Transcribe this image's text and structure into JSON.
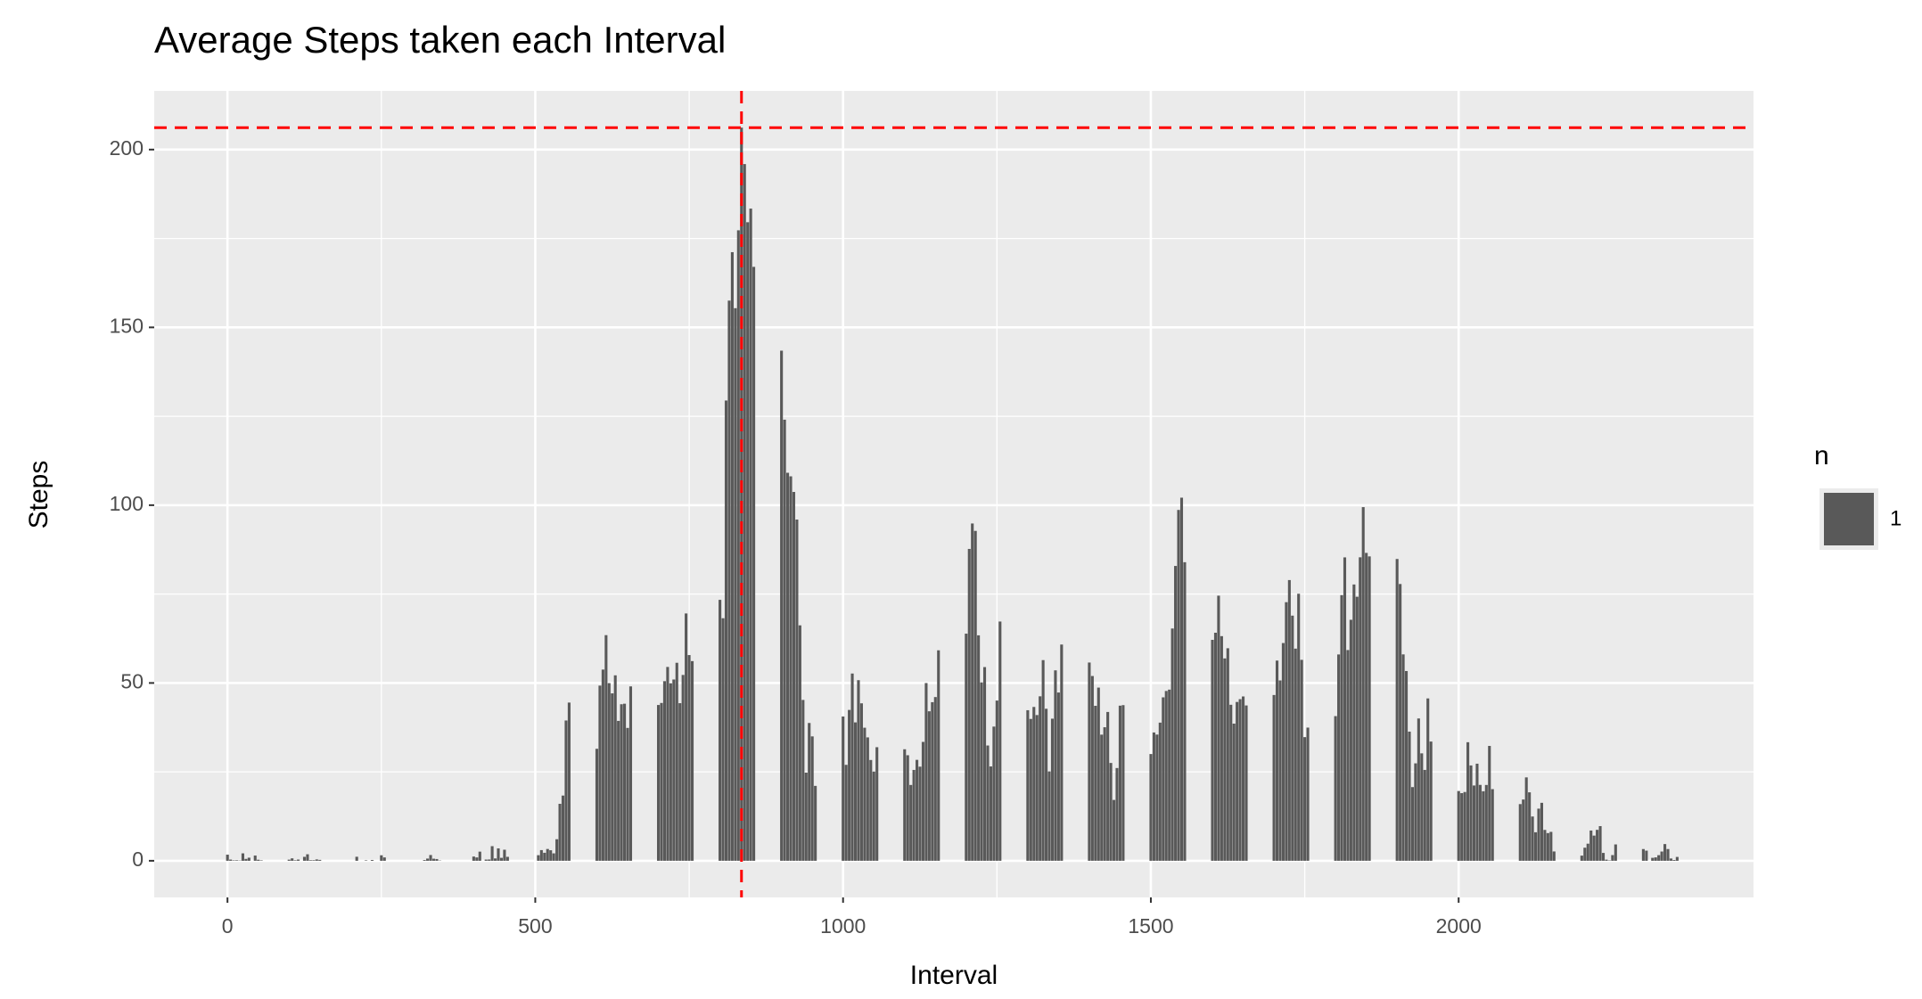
{
  "chart_data": {
    "type": "bar",
    "title": "Average Steps taken each Interval",
    "x_label": "Interval",
    "y_label": "Steps",
    "legend_title": "n",
    "x": [
      0,
      5,
      10,
      15,
      20,
      25,
      30,
      35,
      40,
      45,
      50,
      55,
      100,
      105,
      110,
      115,
      120,
      125,
      130,
      135,
      140,
      145,
      150,
      155,
      200,
      205,
      210,
      215,
      220,
      225,
      230,
      235,
      240,
      245,
      250,
      255,
      300,
      305,
      310,
      315,
      320,
      325,
      330,
      335,
      340,
      345,
      350,
      355,
      400,
      405,
      410,
      415,
      420,
      425,
      430,
      435,
      440,
      445,
      450,
      455,
      500,
      505,
      510,
      515,
      520,
      525,
      530,
      535,
      540,
      545,
      550,
      555,
      600,
      605,
      610,
      615,
      620,
      625,
      630,
      635,
      640,
      645,
      650,
      655,
      700,
      705,
      710,
      715,
      720,
      725,
      730,
      735,
      740,
      745,
      750,
      755,
      800,
      805,
      810,
      815,
      820,
      825,
      830,
      835,
      840,
      845,
      850,
      855,
      900,
      905,
      910,
      915,
      920,
      925,
      930,
      935,
      940,
      945,
      950,
      955,
      1000,
      1005,
      1010,
      1015,
      1020,
      1025,
      1030,
      1035,
      1040,
      1045,
      1050,
      1055,
      1100,
      1105,
      1110,
      1115,
      1120,
      1125,
      1130,
      1135,
      1140,
      1145,
      1150,
      1155,
      1200,
      1205,
      1210,
      1215,
      1220,
      1225,
      1230,
      1235,
      1240,
      1245,
      1250,
      1255,
      1300,
      1305,
      1310,
      1315,
      1320,
      1325,
      1330,
      1335,
      1340,
      1345,
      1350,
      1355,
      1400,
      1405,
      1410,
      1415,
      1420,
      1425,
      1430,
      1435,
      1440,
      1445,
      1450,
      1455,
      1500,
      1505,
      1510,
      1515,
      1520,
      1525,
      1530,
      1535,
      1540,
      1545,
      1550,
      1555,
      1600,
      1605,
      1610,
      1615,
      1620,
      1625,
      1630,
      1635,
      1640,
      1645,
      1650,
      1655,
      1700,
      1705,
      1710,
      1715,
      1720,
      1725,
      1730,
      1735,
      1740,
      1745,
      1750,
      1755,
      1800,
      1805,
      1810,
      1815,
      1820,
      1825,
      1830,
      1835,
      1840,
      1845,
      1850,
      1855,
      1900,
      1905,
      1910,
      1915,
      1920,
      1925,
      1930,
      1935,
      1940,
      1945,
      1950,
      1955,
      2000,
      2005,
      2010,
      2015,
      2020,
      2025,
      2030,
      2035,
      2040,
      2045,
      2050,
      2055,
      2100,
      2105,
      2110,
      2115,
      2120,
      2125,
      2130,
      2135,
      2140,
      2145,
      2150,
      2155,
      2200,
      2205,
      2210,
      2215,
      2220,
      2225,
      2230,
      2235,
      2240,
      2245,
      2250,
      2255,
      2300,
      2305,
      2310,
      2315,
      2320,
      2325,
      2330,
      2335,
      2340,
      2345,
      2350,
      2355
    ],
    "series": [
      {
        "name": "1",
        "color": "#595959",
        "values": [
          1.72,
          0.34,
          0.13,
          0.15,
          0.08,
          2.09,
          0.53,
          0.87,
          0,
          1.47,
          0.3,
          0.13,
          0.32,
          0.68,
          0.15,
          0.34,
          0,
          1.11,
          1.83,
          0.17,
          0.17,
          0.38,
          0.26,
          0,
          0,
          0,
          1.13,
          0,
          0,
          0.13,
          0,
          0.23,
          0,
          0,
          1.55,
          0.94,
          0,
          0,
          0,
          0,
          0.21,
          0.62,
          1.62,
          0.58,
          0.49,
          0.08,
          0,
          0,
          1.19,
          0.94,
          2.57,
          0,
          0.34,
          0.36,
          4.11,
          0.66,
          3.49,
          0.83,
          3.11,
          1.11,
          0,
          1.57,
          3,
          2.25,
          3.32,
          2.96,
          2.09,
          6.06,
          16.02,
          18.34,
          39.45,
          44.49,
          31.49,
          49.26,
          53.77,
          63.45,
          49.96,
          47.08,
          52.15,
          39.34,
          44.02,
          44.17,
          37.36,
          49.04,
          43.81,
          44.38,
          50.51,
          54.51,
          49.92,
          50.98,
          55.68,
          44.32,
          52.26,
          69.55,
          57.85,
          56.15,
          73.38,
          68.21,
          129.43,
          157.53,
          171.15,
          155.4,
          177.3,
          206.17,
          195.92,
          179.57,
          183.4,
          167.02,
          143.45,
          124.04,
          109.11,
          108.11,
          103.72,
          95.96,
          66.21,
          45.23,
          24.79,
          38.75,
          34.98,
          21.06,
          40.57,
          26.98,
          42.42,
          52.66,
          38.92,
          50.79,
          44.28,
          37.42,
          34.7,
          28.34,
          25.09,
          31.94,
          31.36,
          29.68,
          21.32,
          25.55,
          28.38,
          26.47,
          33.43,
          49.98,
          42.04,
          44.6,
          46.04,
          59.19,
          63.87,
          87.7,
          94.85,
          92.77,
          63.4,
          50.17,
          54.47,
          32.42,
          26.53,
          37.74,
          45.06,
          67.28,
          42.34,
          39.89,
          43.26,
          40.98,
          46.25,
          56.43,
          42.75,
          25.13,
          39.96,
          53.55,
          47.32,
          60.81,
          55.75,
          51.96,
          43.58,
          48.7,
          35.47,
          37.55,
          41.85,
          27.51,
          17.11,
          26.08,
          43.62,
          43.77,
          30.02,
          36.08,
          35.49,
          38.85,
          45.96,
          47.75,
          48.13,
          65.32,
          82.91,
          98.66,
          102.11,
          83.96,
          62.13,
          64.13,
          74.55,
          63.17,
          56.91,
          59.77,
          43.87,
          38.57,
          44.66,
          45.45,
          46.21,
          43.68,
          46.62,
          56.3,
          50.72,
          61.23,
          72.72,
          78.94,
          68.94,
          59.66,
          75.09,
          56.51,
          34.77,
          37.45,
          40.68,
          58.02,
          74.7,
          85.32,
          59.26,
          67.77,
          77.7,
          74.25,
          85.34,
          99.45,
          86.58,
          85.6,
          84.87,
          77.83,
          58.04,
          53.36,
          36.32,
          20.72,
          27.4,
          40.02,
          30.21,
          25.55,
          45.66,
          33.53,
          19.62,
          19.02,
          19.34,
          33.34,
          26.81,
          21.17,
          27.3,
          21.34,
          19.55,
          21.32,
          32.3,
          20.15,
          15.94,
          17.23,
          23.45,
          19.25,
          12.45,
          8.02,
          14.66,
          16.3,
          8.68,
          7.79,
          8.13,
          2.62,
          1.45,
          3.68,
          4.81,
          8.51,
          7.08,
          8.7,
          9.75,
          2.21,
          0.32,
          0.11,
          1.6,
          4.6,
          3.3,
          2.85,
          0,
          0.83,
          0.96,
          1.58,
          2.6,
          4.7,
          3.3,
          0.64,
          0.23,
          1.08
        ]
      }
    ],
    "reference_lines": {
      "x": 835,
      "y": 206.17,
      "color": "#ff0000"
    },
    "xlim": [
      -119,
      2479
    ],
    "xticks": [
      0,
      500,
      1000,
      1500,
      2000
    ],
    "ylim": [
      -10.3,
      216.5
    ],
    "yticks": [
      0,
      50,
      100,
      150,
      200
    ],
    "grid": true
  }
}
